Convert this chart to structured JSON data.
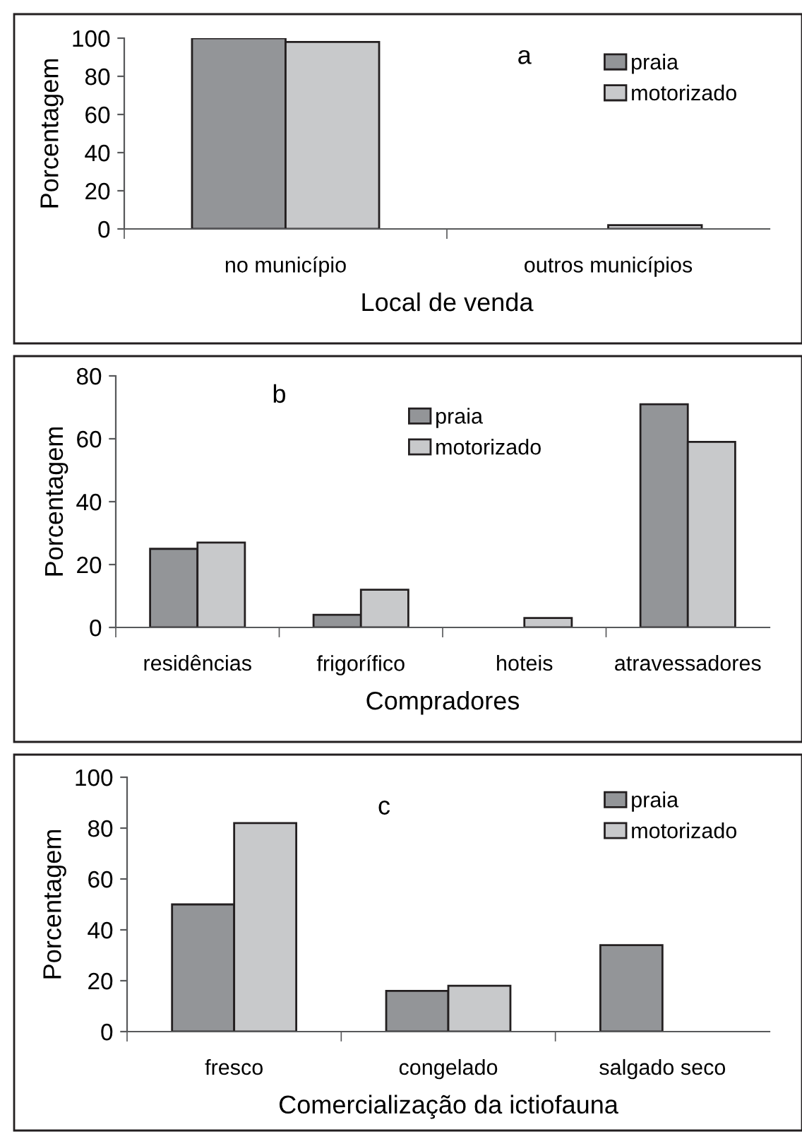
{
  "chart_data": [
    {
      "type": "bar",
      "xlabel": "Local de venda",
      "ylabel": "Porcentagem",
      "categories": [
        "no município",
        "outros municípios"
      ],
      "series": [
        {
          "name": "praia",
          "color": "#939598",
          "values": [
            100,
            0
          ]
        },
        {
          "name": "motorizado",
          "color": "#c8c9cb",
          "values": [
            98,
            2
          ]
        }
      ],
      "ylim": [
        0,
        100
      ],
      "yticks": [
        0,
        20,
        40,
        60,
        80,
        100
      ],
      "grid": false,
      "legend": "top right",
      "annotations": [
        "a"
      ]
    },
    {
      "type": "bar",
      "xlabel": "Compradores",
      "ylabel": "Porcentagem",
      "categories": [
        "residências",
        "frigorífico",
        "hoteis",
        "atravessadores"
      ],
      "series": [
        {
          "name": "praia",
          "color": "#939598",
          "values": [
            25,
            4,
            0,
            71
          ]
        },
        {
          "name": "motorizado",
          "color": "#c8c9cb",
          "values": [
            27,
            12,
            3,
            59
          ]
        }
      ],
      "ylim": [
        0,
        80
      ],
      "yticks": [
        0,
        20,
        40,
        60,
        80
      ],
      "grid": false,
      "legend": "top",
      "annotations": [
        "b"
      ]
    },
    {
      "type": "bar",
      "xlabel": "Comercialização da ictiofauna",
      "ylabel": "Porcentagem",
      "categories": [
        "fresco",
        "congelado",
        "salgado seco"
      ],
      "series": [
        {
          "name": "praia",
          "color": "#939598",
          "values": [
            50,
            16,
            34
          ]
        },
        {
          "name": "motorizado",
          "color": "#c8c9cb",
          "values": [
            82,
            18,
            0
          ]
        }
      ],
      "ylim": [
        0,
        100
      ],
      "yticks": [
        0,
        20,
        40,
        60,
        80,
        100
      ],
      "grid": false,
      "legend": "top right",
      "annotations": [
        "c"
      ]
    }
  ]
}
